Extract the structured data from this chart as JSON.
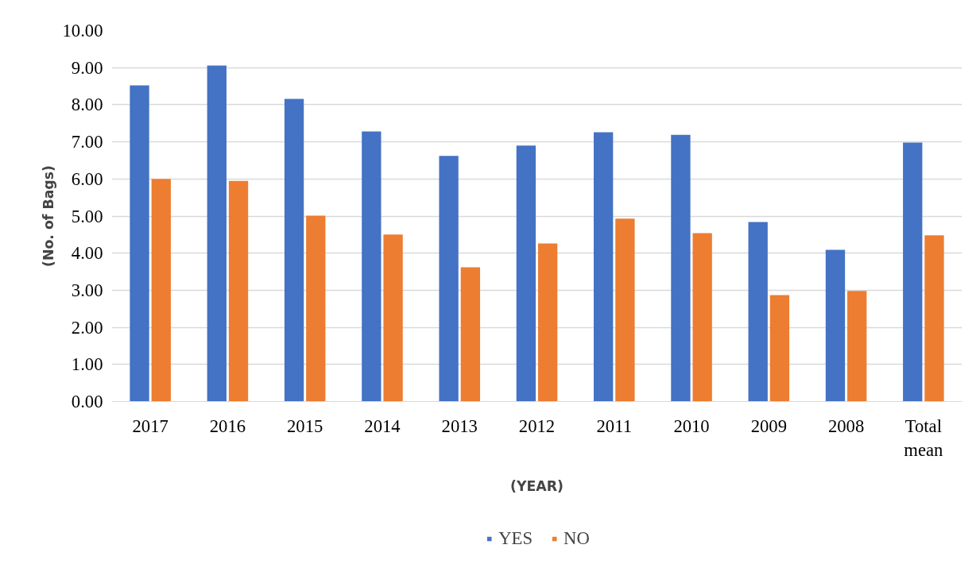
{
  "chart_data": {
    "type": "bar",
    "xlabel": "(YEAR)",
    "ylabel": "(No. of Bags)",
    "categories": [
      "2017",
      "2016",
      "2015",
      "2014",
      "2013",
      "2012",
      "2011",
      "2010",
      "2009",
      "2008",
      "Total mean"
    ],
    "series": [
      {
        "name": "YES",
        "color": "#4472c4",
        "values": [
          8.52,
          9.06,
          8.16,
          7.28,
          6.62,
          6.9,
          7.26,
          7.19,
          4.84,
          4.09,
          6.98
        ]
      },
      {
        "name": "NO",
        "color": "#ed7d31",
        "values": [
          6.0,
          5.95,
          5.01,
          4.5,
          3.62,
          4.26,
          4.93,
          4.54,
          2.87,
          2.98,
          4.48
        ]
      }
    ],
    "ylim": [
      0,
      10
    ],
    "yticks": [
      {
        "value": 0,
        "label": "0.00"
      },
      {
        "value": 1,
        "label": "1.00"
      },
      {
        "value": 2,
        "label": "2.00"
      },
      {
        "value": 3,
        "label": "3.00"
      },
      {
        "value": 4,
        "label": "4.00"
      },
      {
        "value": 5,
        "label": "5.00"
      },
      {
        "value": 6,
        "label": "6.00"
      },
      {
        "value": 7,
        "label": "7.00"
      },
      {
        "value": 8,
        "label": "8.00"
      },
      {
        "value": 9,
        "label": "9.00"
      },
      {
        "value": 10,
        "label": "10.00"
      }
    ],
    "grid": "y",
    "legend": "bottom"
  }
}
